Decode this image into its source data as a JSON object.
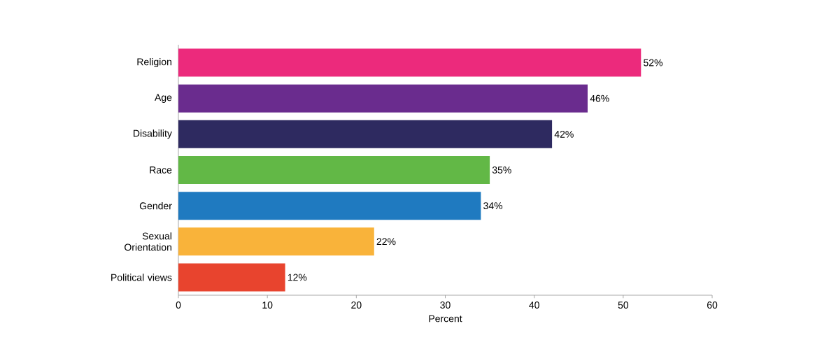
{
  "chart_data": {
    "type": "bar",
    "orientation": "horizontal",
    "categories": [
      "Religion",
      "Age",
      "Disability",
      "Race",
      "Gender",
      "Sexual Orientation",
      "Political views"
    ],
    "values": [
      52,
      46,
      42,
      35,
      34,
      22,
      12
    ],
    "colors": [
      "#ec2a7c",
      "#6a2c8e",
      "#2e2a60",
      "#62b846",
      "#1f7ac0",
      "#f9b33a",
      "#e8442e"
    ],
    "value_labels": [
      "52%",
      "46%",
      "42%",
      "35%",
      "34%",
      "22%",
      "12%"
    ],
    "xlabel": "Percent",
    "xlim": [
      0,
      60
    ],
    "xticks": [
      0,
      10,
      20,
      30,
      40,
      50,
      60
    ]
  }
}
